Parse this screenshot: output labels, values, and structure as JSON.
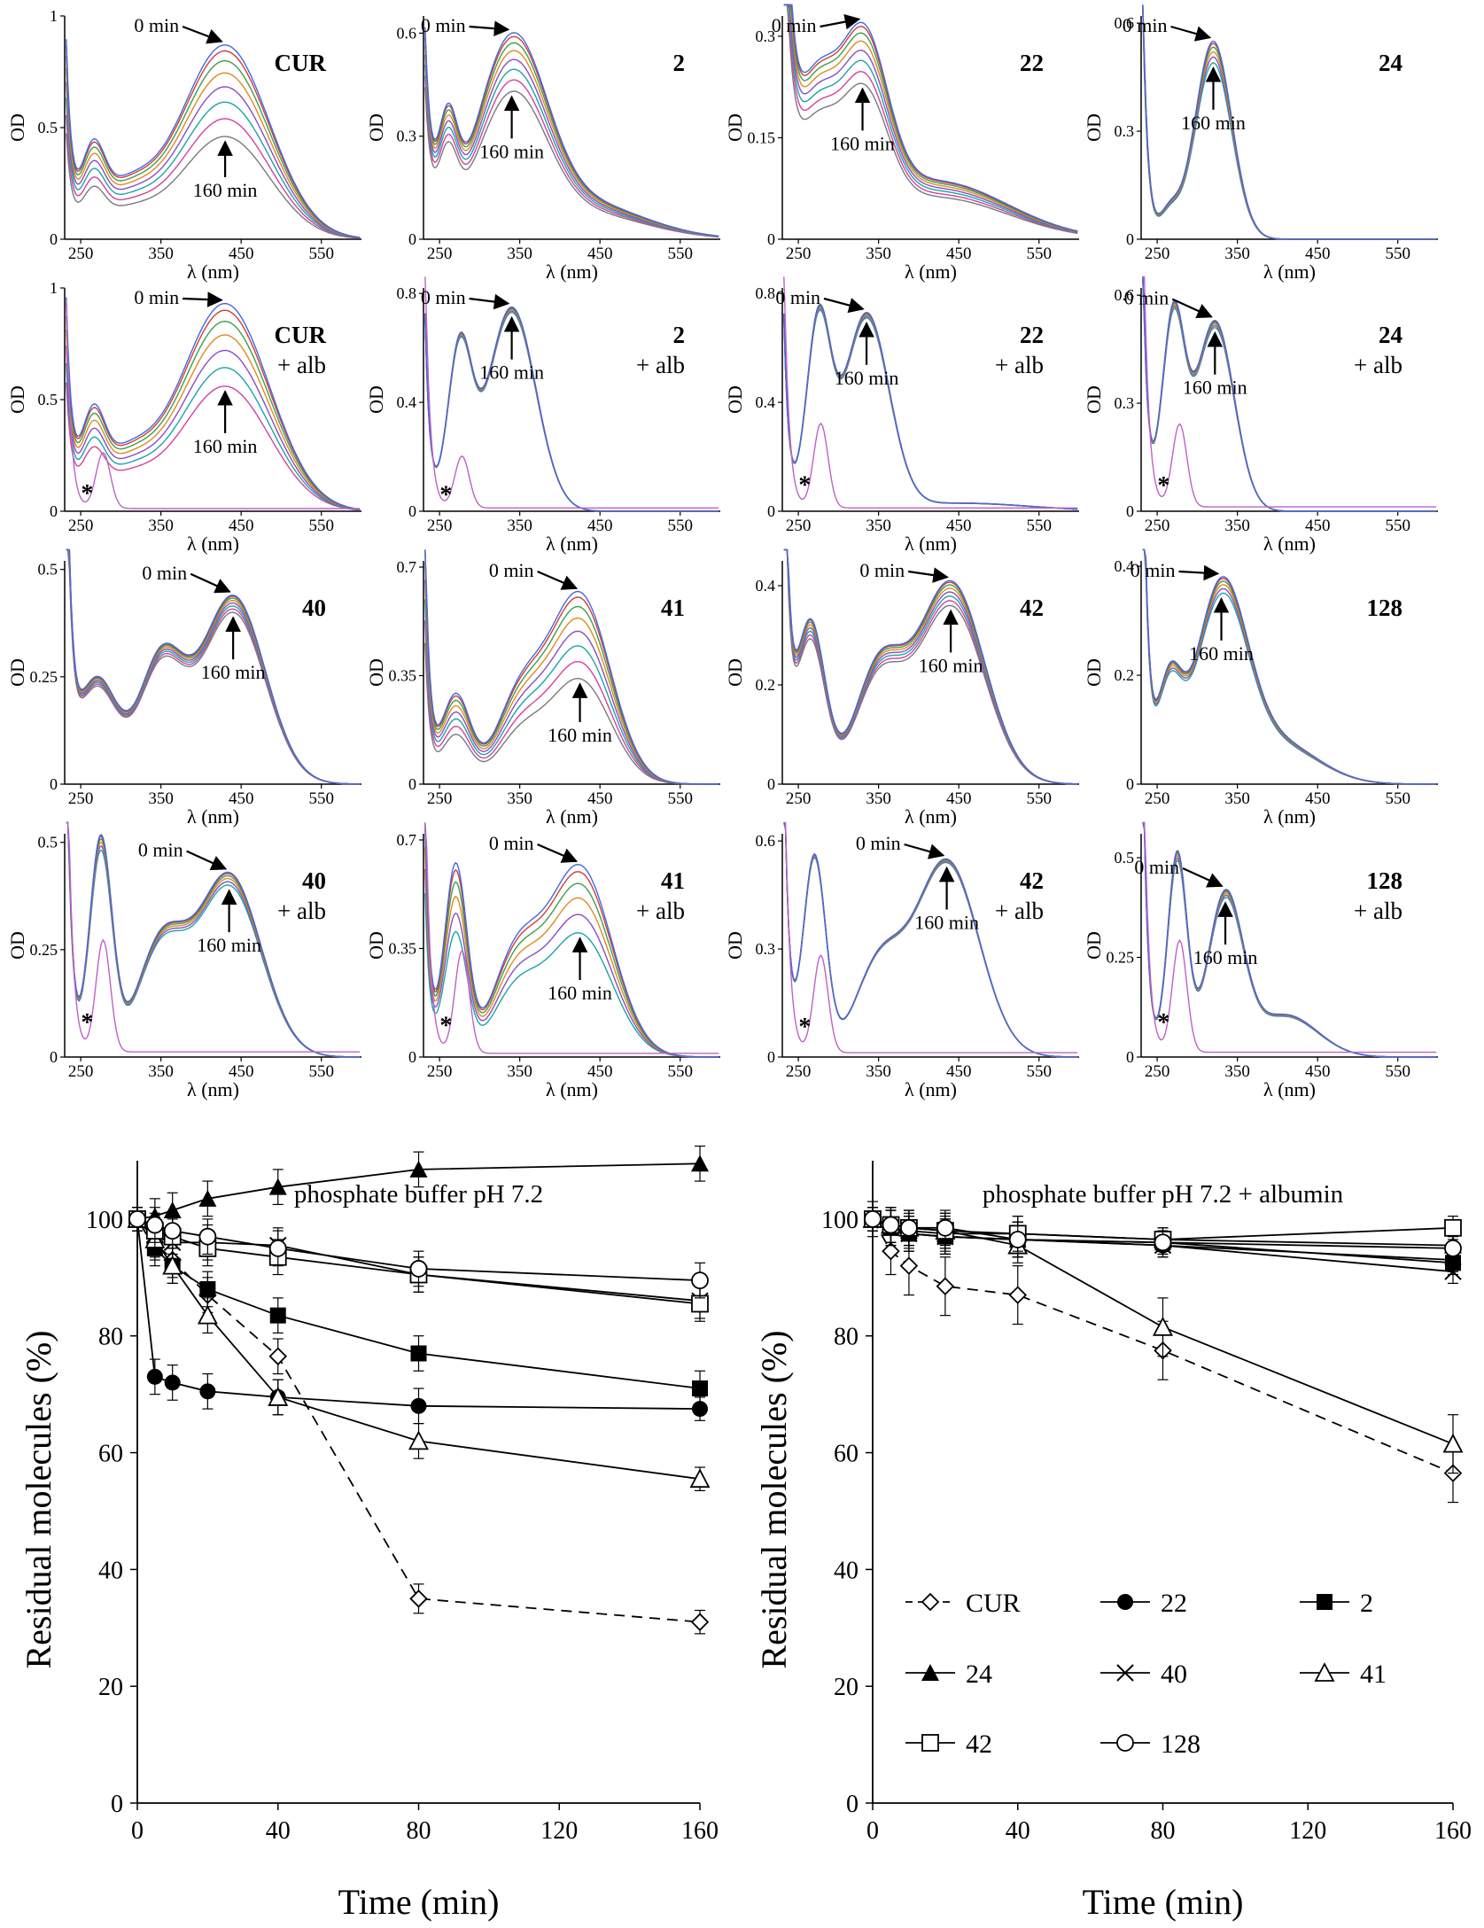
{
  "chart_data": {
    "spectra": {
      "type": "line",
      "xlabel": "λ (nm)",
      "ylabel": "OD",
      "xlim": [
        230,
        600
      ],
      "xticks": [
        250,
        350,
        450,
        550
      ],
      "time_start_label": "0 min",
      "time_end_label": "160 min",
      "albumin_marker": "*",
      "panels": [
        {
          "compound": "CUR",
          "condition": "",
          "ylim": [
            0,
            1
          ],
          "yticks": [
            0,
            0.5,
            1
          ],
          "ytick_labels": [
            "0",
            "0.5",
            "1"
          ],
          "kind": "cur",
          "peak": 430,
          "start": 0.87,
          "end": 0.46,
          "nCurves": 8
        },
        {
          "compound": "2",
          "condition": "",
          "ylim": [
            0,
            0.65
          ],
          "yticks": [
            0,
            0.3,
            0.6
          ],
          "ytick_labels": [
            "0",
            "0.3",
            "0.6"
          ],
          "kind": "c2",
          "peak": 340,
          "start": 0.6,
          "end": 0.43,
          "nCurves": 8
        },
        {
          "compound": "22",
          "condition": "",
          "ylim": [
            0,
            0.33
          ],
          "yticks": [
            0,
            0.15,
            0.3
          ],
          "ytick_labels": [
            "0",
            "0.15",
            "0.3"
          ],
          "kind": "c22",
          "peak": 330,
          "start": 0.32,
          "end": 0.23,
          "nCurves": 8
        },
        {
          "compound": "24",
          "condition": "",
          "ylim": [
            0,
            0.62
          ],
          "yticks": [
            0,
            0.3,
            0.6
          ],
          "ytick_labels": [
            "0",
            "0.3",
            "0.6"
          ],
          "kind": "c24",
          "peak": 320,
          "start": 0.55,
          "end": 0.49,
          "nCurves": 6
        },
        {
          "compound": "CUR",
          "condition": "+ alb",
          "ylim": [
            0,
            1
          ],
          "yticks": [
            0,
            0.5,
            1
          ],
          "ytick_labels": [
            "0",
            "0.5",
            "1"
          ],
          "kind": "cur",
          "peak": 430,
          "start": 0.93,
          "end": 0.56,
          "nCurves": 7,
          "albumin": true,
          "albPeak": 0.25
        },
        {
          "compound": "2",
          "condition": "+ alb",
          "ylim": [
            0,
            0.82
          ],
          "yticks": [
            0,
            0.4,
            0.8
          ],
          "ytick_labels": [
            "0",
            "0.4",
            "0.8"
          ],
          "kind": "c2a",
          "peak": 340,
          "start": 0.75,
          "end": 0.73,
          "nCurves": 6,
          "albumin": true,
          "albPeak": 0.19
        },
        {
          "compound": "22",
          "condition": "+ alb",
          "ylim": [
            0,
            0.82
          ],
          "yticks": [
            0,
            0.4,
            0.8
          ],
          "ytick_labels": [
            "0",
            "0.4",
            "0.8"
          ],
          "kind": "c22a",
          "peak": 335,
          "start": 0.73,
          "end": 0.71,
          "nCurves": 6,
          "albumin": true,
          "albPeak": 0.31
        },
        {
          "compound": "24",
          "condition": "+ alb",
          "ylim": [
            0,
            0.62
          ],
          "yticks": [
            0,
            0.3,
            0.6
          ],
          "ytick_labels": [
            "0",
            "0.3",
            "0.6"
          ],
          "kind": "c24a",
          "peak": 322,
          "start": 0.53,
          "end": 0.51,
          "nCurves": 6,
          "albumin": true,
          "albPeak": 0.23
        },
        {
          "compound": "40",
          "condition": "",
          "ylim": [
            0,
            0.52
          ],
          "yticks": [
            0,
            0.25,
            0.5
          ],
          "ytick_labels": [
            "0",
            "0.25",
            "0.5"
          ],
          "kind": "c40",
          "peak": 440,
          "start": 0.44,
          "end": 0.4,
          "nCurves": 8
        },
        {
          "compound": "41",
          "condition": "",
          "ylim": [
            0,
            0.72
          ],
          "yticks": [
            0,
            0.35,
            0.7
          ],
          "ytick_labels": [
            "0",
            "0.35",
            "0.7"
          ],
          "kind": "c41",
          "peak": 425,
          "start": 0.62,
          "end": 0.34,
          "nCurves": 8
        },
        {
          "compound": "42",
          "condition": "",
          "ylim": [
            0,
            0.45
          ],
          "yticks": [
            0,
            0.2,
            0.4
          ],
          "ytick_labels": [
            "0",
            "0.2",
            "0.4"
          ],
          "kind": "c42",
          "peak": 440,
          "start": 0.41,
          "end": 0.36,
          "nCurves": 8
        },
        {
          "compound": "128",
          "condition": "",
          "ylim": [
            0,
            0.41
          ],
          "yticks": [
            0,
            0.2,
            0.4
          ],
          "ytick_labels": [
            "0",
            "0.2",
            "0.4"
          ],
          "kind": "c128",
          "peak": 330,
          "start": 0.38,
          "end": 0.35,
          "nCurves": 6
        },
        {
          "compound": "40",
          "condition": "+ alb",
          "ylim": [
            0,
            0.52
          ],
          "yticks": [
            0,
            0.25,
            0.5
          ],
          "ytick_labels": [
            "0",
            "0.25",
            "0.5"
          ],
          "kind": "c40a",
          "peak": 435,
          "start": 0.43,
          "end": 0.4,
          "nCurves": 6,
          "albumin": true,
          "albPeak": 0.26
        },
        {
          "compound": "41",
          "condition": "+ alb",
          "ylim": [
            0,
            0.72
          ],
          "yticks": [
            0,
            0.35,
            0.7
          ],
          "ytick_labels": [
            "0",
            "0.35",
            "0.7"
          ],
          "kind": "c41a",
          "peak": 425,
          "start": 0.62,
          "end": 0.4,
          "nCurves": 6,
          "albumin": true,
          "albPeak": 0.33
        },
        {
          "compound": "42",
          "condition": "+ alb",
          "ylim": [
            0,
            0.62
          ],
          "yticks": [
            0,
            0.3,
            0.6
          ],
          "ytick_labels": [
            "0",
            "0.3",
            "0.6"
          ],
          "kind": "c42a",
          "peak": 435,
          "start": 0.55,
          "end": 0.54,
          "nCurves": 6,
          "albumin": true,
          "albPeak": 0.27
        },
        {
          "compound": "128",
          "condition": "+ alb",
          "ylim": [
            0,
            0.56
          ],
          "yticks": [
            0,
            0.25,
            0.5
          ],
          "ytick_labels": [
            "0",
            "0.25",
            "0.5"
          ],
          "kind": "c128a",
          "peak": 335,
          "start": 0.42,
          "end": 0.4,
          "nCurves": 6,
          "albumin": true,
          "albPeak": 0.28
        }
      ]
    },
    "kinetics": {
      "type": "line",
      "xlabel": "Time (min)",
      "ylabel": "Residual molecules (%)",
      "xlim": [
        0,
        160
      ],
      "ylim": [
        0,
        110
      ],
      "xticks": [
        0,
        40,
        80,
        120,
        160
      ],
      "yticks": [
        0,
        20,
        40,
        60,
        80,
        100
      ],
      "x": [
        0,
        5,
        10,
        20,
        40,
        80,
        160
      ],
      "panels": [
        {
          "title": "phosphate buffer pH 7.2",
          "series": [
            {
              "name": "CUR",
              "marker": "diamond",
              "dashed": true,
              "values": [
                100,
                96,
                93,
                87,
                76.5,
                35,
                31
              ],
              "errors": [
                2,
                3,
                3,
                3,
                3,
                2.5,
                2
              ]
            },
            {
              "name": "22",
              "marker": "circle-filled",
              "dashed": false,
              "values": [
                100,
                73,
                72,
                70.5,
                69.5,
                68,
                67.5
              ],
              "errors": [
                2,
                3,
                3,
                3,
                3,
                3,
                2
              ]
            },
            {
              "name": "2",
              "marker": "square-filled",
              "dashed": false,
              "values": [
                100,
                95,
                92,
                88,
                83.5,
                77,
                71
              ],
              "errors": [
                2,
                3,
                3,
                3,
                3,
                3,
                3
              ]
            },
            {
              "name": "24",
              "marker": "triangle-filled",
              "dashed": false,
              "values": [
                100,
                100.5,
                101.5,
                103.5,
                105.5,
                108.5,
                109.5
              ],
              "errors": [
                2,
                3,
                3,
                3,
                3,
                3,
                3
              ]
            },
            {
              "name": "40",
              "marker": "cross",
              "dashed": false,
              "values": [
                100,
                97,
                96,
                96,
                95.5,
                90.5,
                86
              ],
              "errors": [
                2,
                3,
                3,
                3,
                3,
                3,
                3
              ]
            },
            {
              "name": "41",
              "marker": "triangle-open",
              "dashed": false,
              "values": [
                100,
                96.5,
                92,
                83.5,
                69.5,
                62,
                55.5
              ],
              "errors": [
                2,
                3,
                3,
                3,
                3,
                3,
                2
              ]
            },
            {
              "name": "42",
              "marker": "square-open",
              "dashed": false,
              "values": [
                100,
                98,
                97,
                95,
                93.5,
                90.5,
                85.5
              ],
              "errors": [
                2,
                3,
                3,
                3,
                3,
                3,
                3
              ]
            },
            {
              "name": "128",
              "marker": "circle-open",
              "dashed": false,
              "values": [
                100,
                99,
                98,
                97,
                95,
                91.5,
                89.5
              ],
              "errors": [
                2,
                3,
                3,
                3,
                3,
                3,
                3
              ]
            }
          ]
        },
        {
          "title": "phosphate buffer pH 7.2 + albumin",
          "series": [
            {
              "name": "CUR",
              "marker": "diamond",
              "dashed": true,
              "values": [
                100,
                94.5,
                92,
                88.5,
                87,
                77.5,
                56.5
              ],
              "errors": [
                3,
                4,
                5,
                5,
                5,
                5,
                5
              ]
            },
            {
              "name": "22",
              "marker": "circle-filled",
              "dashed": false,
              "values": [
                100,
                98.5,
                97.5,
                97,
                96.5,
                95.5,
                93
              ],
              "errors": [
                2,
                3,
                3,
                3,
                3,
                2,
                2
              ]
            },
            {
              "name": "2",
              "marker": "square-filled",
              "dashed": false,
              "values": [
                100,
                98.5,
                97.5,
                97,
                96.5,
                96,
                92.5
              ],
              "errors": [
                2,
                3,
                3,
                3,
                3,
                2,
                2
              ]
            },
            {
              "name": "24",
              "marker": "triangle-filled",
              "dashed": false,
              "values": [
                100,
                98.5,
                98,
                97.5,
                97.5,
                96.5,
                95.5
              ],
              "errors": [
                2,
                3,
                3,
                3,
                3,
                2,
                2
              ]
            },
            {
              "name": "40",
              "marker": "cross",
              "dashed": false,
              "values": [
                100,
                98.5,
                97.5,
                97,
                96.5,
                95.5,
                91
              ],
              "errors": [
                2,
                3,
                3,
                3,
                3,
                2,
                2
              ]
            },
            {
              "name": "41",
              "marker": "triangle-open",
              "dashed": false,
              "values": [
                100,
                99,
                98.5,
                98,
                95.5,
                81.5,
                61.5
              ],
              "errors": [
                2,
                3,
                3,
                3,
                3,
                5,
                5
              ]
            },
            {
              "name": "42",
              "marker": "square-open",
              "dashed": false,
              "values": [
                100,
                99,
                98.5,
                98,
                97.5,
                96.5,
                98.5
              ],
              "errors": [
                2,
                3,
                3,
                3,
                3,
                2,
                2
              ]
            },
            {
              "name": "128",
              "marker": "circle-open",
              "dashed": false,
              "values": [
                100,
                99,
                98.5,
                98.5,
                96.5,
                96,
                95
              ],
              "errors": [
                2,
                3,
                3,
                3,
                3,
                2,
                2
              ]
            }
          ],
          "legend": [
            "CUR",
            "22",
            "2",
            "24",
            "40",
            "41",
            "42",
            "128"
          ],
          "legend_placement": "bottom-center"
        }
      ]
    }
  }
}
